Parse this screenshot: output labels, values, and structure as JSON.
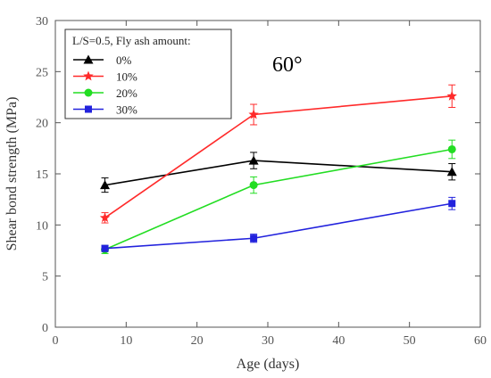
{
  "chart_data": {
    "type": "line",
    "xlabel": "Age (days)",
    "ylabel": "Shear bond strength (MPa)",
    "xlim": [
      0,
      60
    ],
    "ylim": [
      0,
      30
    ],
    "xticks": [
      0,
      10,
      20,
      30,
      40,
      50,
      60
    ],
    "yticks": [
      0,
      5,
      10,
      15,
      20,
      25,
      30
    ],
    "grid": false,
    "legend_title": "L/S=0.5, Fly ash amount:",
    "legend_position": "top-left",
    "annotation": "60°",
    "series": [
      {
        "name": "0%",
        "color": "#000000",
        "marker": "triangle",
        "x": [
          7,
          28,
          56
        ],
        "y": [
          13.9,
          16.3,
          15.2
        ],
        "error": [
          0.7,
          0.8,
          0.8
        ]
      },
      {
        "name": "10%",
        "color": "#ff2a2a",
        "marker": "star",
        "x": [
          7,
          28,
          56
        ],
        "y": [
          10.7,
          20.8,
          22.6
        ],
        "error": [
          0.5,
          1.0,
          1.1
        ]
      },
      {
        "name": "20%",
        "color": "#22dd22",
        "marker": "circle",
        "x": [
          7,
          28,
          56
        ],
        "y": [
          7.6,
          13.9,
          17.4
        ],
        "error": [
          0.4,
          0.8,
          0.9
        ]
      },
      {
        "name": "30%",
        "color": "#2222dd",
        "marker": "square",
        "x": [
          7,
          28,
          56
        ],
        "y": [
          7.7,
          8.7,
          12.1
        ],
        "error": [
          0.3,
          0.4,
          0.6
        ]
      }
    ]
  }
}
